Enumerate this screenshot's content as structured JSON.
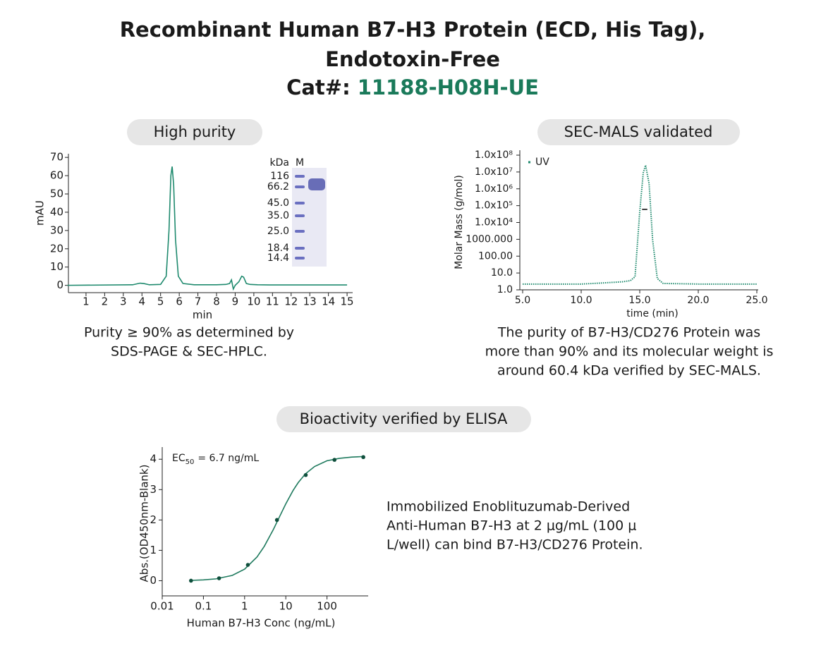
{
  "header": {
    "title_lines": [
      "Recombinant Human B7-H3 Protein (ECD, His Tag),",
      "Endotoxin-Free"
    ],
    "catalog_label": "Cat#:",
    "catalog_number": "11188-H08H-UE"
  },
  "gel": {
    "unit_label": "kDa",
    "lane_label": "M",
    "markers": [
      "116",
      "66.2",
      "45.0",
      "35.0",
      "25.0",
      "18.4",
      "14.4"
    ]
  },
  "chart_data": [
    {
      "type": "line",
      "title": "High purity",
      "caption": [
        "Purity ≥ 90% as determined by",
        "SDS-PAGE & SEC-HPLC."
      ],
      "x_label": "min",
      "y_label": "mAU",
      "xlim": [
        0,
        15.3
      ],
      "ylim": [
        -4,
        72
      ],
      "xticks": [
        1,
        2,
        3,
        4,
        5,
        6,
        7,
        8,
        9,
        10,
        11,
        12,
        13,
        14,
        15
      ],
      "yticks": [
        0,
        10,
        20,
        30,
        40,
        50,
        60,
        70
      ],
      "series": [
        {
          "color": "#1f8a6e",
          "mode": "line",
          "x": [
            0,
            3.5,
            3.9,
            4.1,
            4.4,
            5.0,
            5.3,
            5.45,
            5.55,
            5.62,
            5.7,
            5.8,
            5.95,
            6.2,
            6.8,
            8.0,
            8.5,
            8.7,
            8.8,
            8.9,
            9.0,
            9.2,
            9.35,
            9.45,
            9.6,
            9.8,
            10.2,
            11,
            15
          ],
          "values": [
            0,
            0.3,
            1.2,
            1,
            0.3,
            0.5,
            5,
            30,
            60,
            65,
            55,
            25,
            5,
            1,
            0.3,
            0.3,
            0.5,
            1,
            3,
            -2,
            0,
            2,
            5,
            4.5,
            1,
            0.5,
            0.3,
            0.2,
            0.2
          ]
        }
      ]
    },
    {
      "type": "line",
      "title": "SEC-MALS validated",
      "caption": [
        "The purity of B7-H3/CD276 Protein was",
        "more than 90% and its molecular weight is",
        "around 60.4 kDa verified by SEC-MALS."
      ],
      "x_label": "time (min)",
      "y_label": "Molar Mass (g/mol)",
      "ylog": true,
      "legend": "top-left",
      "xlim": [
        5,
        25
      ],
      "ylim": [
        1,
        100000000
      ],
      "xticks": [
        {
          "value": 5,
          "label": "5.0"
        },
        {
          "value": 10,
          "label": "10.0"
        },
        {
          "value": 15,
          "label": "15.0"
        },
        {
          "value": 20,
          "label": "20.0"
        },
        {
          "value": 25,
          "label": "25.0"
        }
      ],
      "yticks": [
        {
          "value": 1,
          "label": "1.0"
        },
        {
          "value": 10,
          "label": "10.0"
        },
        {
          "value": 100,
          "label": "100.00"
        },
        {
          "value": 1000,
          "label": "1000.000"
        },
        {
          "value": 10000,
          "label": "1.0x10⁴"
        },
        {
          "value": 100000,
          "label": "1.0x10⁵"
        },
        {
          "value": 1000000,
          "label": "1.0x10⁶"
        },
        {
          "value": 10000000,
          "label": "1.0x10⁷"
        },
        {
          "value": 100000000,
          "label": "1.0x10⁸"
        }
      ],
      "series": [
        {
          "name": "UV",
          "color": "#1f8a6e",
          "mode": "dotted",
          "x": [
            5,
            10,
            12,
            13.5,
            14.2,
            14.6,
            15,
            15.3,
            15.5,
            15.8,
            16.1,
            16.5,
            17,
            20,
            25
          ],
          "values": [
            2.2,
            2.2,
            2.6,
            3,
            3.5,
            6,
            44000,
            9000000,
            25000000,
            2000000,
            930,
            4.7,
            2.4,
            2.2,
            2.2
          ]
        },
        {
          "color": "#111111",
          "mode": "line",
          "x": [
            15.2,
            15.35,
            15.5,
            15.65
          ],
          "values": [
            60400,
            60400,
            60400,
            60400
          ]
        }
      ]
    },
    {
      "type": "scatter",
      "title": "Bioactivity verified by ELISA",
      "caption": [
        "Immobilized Enoblituzumab-Derived",
        "Anti-Human B7-H3 at 2 μg/mL (100 μ",
        "L/well) can bind B7-H3/CD276 Protein."
      ],
      "x_label": "Human B7-H3 Conc (ng/mL)",
      "y_label": "Abs.(OD450nm-Blank)",
      "xlog": true,
      "annotation": {
        "text": "EC",
        "subscript": "50",
        "suffix": "= 6.7 ng/mL"
      },
      "xlim": [
        0.01,
        1000
      ],
      "ylim": [
        -0.5,
        4.4
      ],
      "xticks": [
        0.01,
        0.1,
        1,
        10,
        100
      ],
      "yticks": [
        0,
        1,
        2,
        3,
        4
      ],
      "series": [
        {
          "color": "#1f7a5e",
          "mode": "line",
          "x": [
            0.05,
            0.1,
            0.2,
            0.5,
            1,
            2,
            3,
            5,
            7,
            10,
            15,
            20,
            30,
            50,
            100,
            200,
            400,
            800
          ],
          "values": [
            0.011,
            0.026,
            0.06,
            0.174,
            0.38,
            0.78,
            1.13,
            1.69,
            2.1,
            2.53,
            2.97,
            3.23,
            3.52,
            3.76,
            3.95,
            4.03,
            4.07,
            4.09
          ]
        },
        {
          "color": "#0f4f3c",
          "mode": "markers",
          "x": [
            0.05,
            0.24,
            1.2,
            6.1,
            30.5,
            152,
            762
          ],
          "values": [
            0,
            0.08,
            0.52,
            2.0,
            3.48,
            3.98,
            4.07
          ]
        }
      ]
    }
  ]
}
